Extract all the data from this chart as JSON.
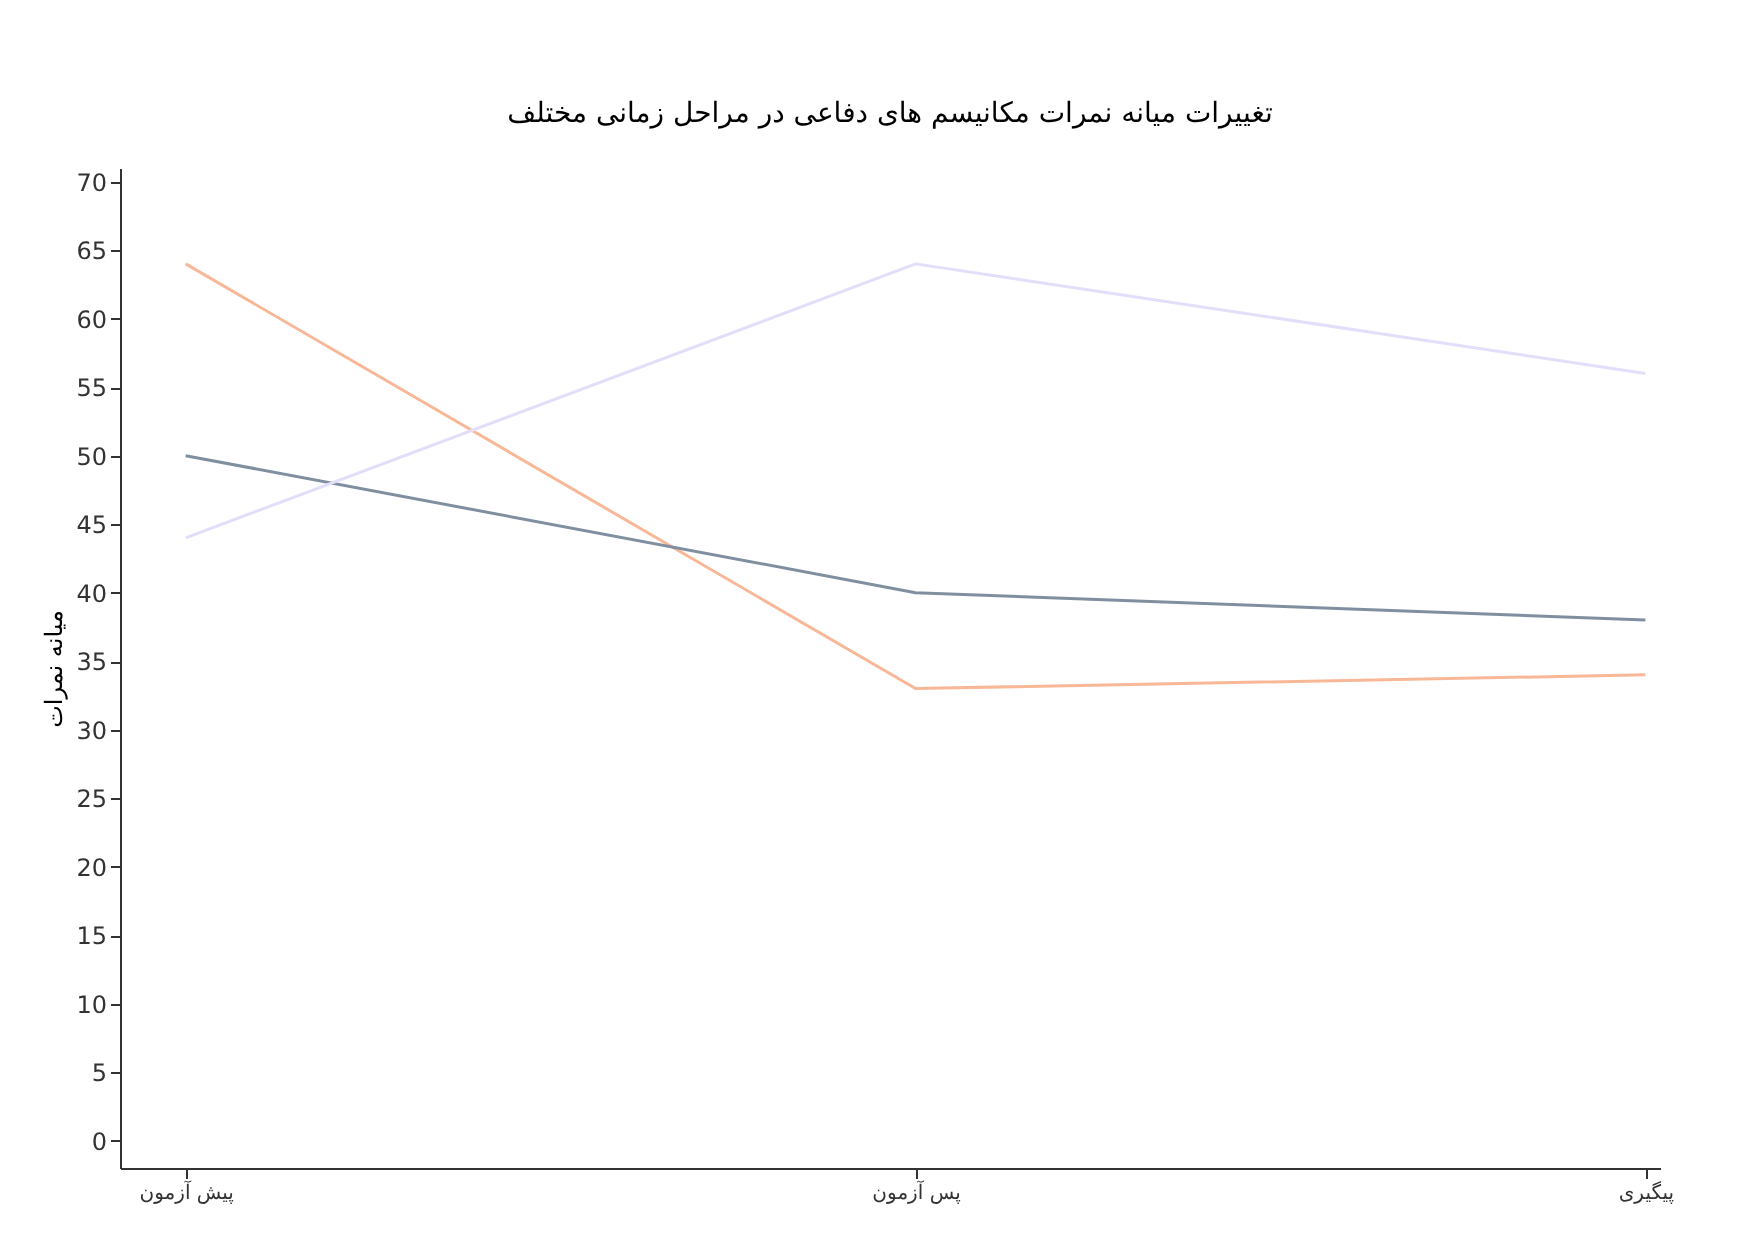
{
  "chart_data": {
    "type": "line",
    "title": "تغییرات میانه نمرات مکانیسم های دفاعی در مراحل زمانی مختلف",
    "ylabel": "میانه نمرات",
    "categories": [
      "پیش آزمون",
      "پس آزمون",
      "پیگیری"
    ],
    "series": [
      {
        "color": "#f8b898",
        "values": [
          64,
          33,
          34
        ]
      },
      {
        "color": "#7f8fa0",
        "values": [
          50,
          40,
          38
        ]
      },
      {
        "color": "#e4defb",
        "values": [
          44,
          64,
          56
        ]
      }
    ],
    "ylim": [
      -2,
      71
    ],
    "yticks": [
      0,
      5,
      10,
      15,
      20,
      25,
      30,
      35,
      40,
      45,
      50,
      55,
      60,
      65,
      70
    ],
    "grid": false,
    "legend": false,
    "marker": "none",
    "line_style": "solid"
  }
}
